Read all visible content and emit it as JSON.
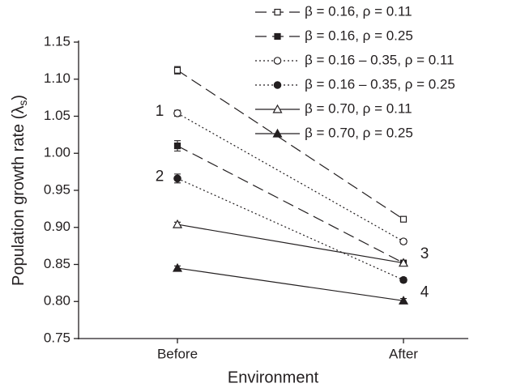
{
  "chart_data": {
    "type": "line",
    "x_label": "Environment",
    "y_label": [
      "Population growth rate (λ",
      "s",
      ")"
    ],
    "categories": [
      "Before",
      "After"
    ],
    "ylim": [
      0.75,
      1.15
    ],
    "yticks": [
      0.75,
      {
        "value": 0.8,
        "label": "0.80"
      },
      0.85,
      {
        "value": 0.9,
        "label": "0.90"
      },
      0.95,
      {
        "value": 1.0,
        "label": "1.00"
      },
      1.05,
      {
        "value": 1.1,
        "label": "1.10"
      },
      1.15
    ],
    "series": [
      {
        "name": "β = 0.16, ρ = 0.11",
        "color": "#231f20",
        "line_style": "dashed",
        "marker": "square",
        "filled": false,
        "values": [
          1.112,
          0.911
        ],
        "errors": [
          0.005,
          0.003
        ]
      },
      {
        "name": "β = 0.16, ρ = 0.25",
        "color": "#231f20",
        "line_style": "dashed",
        "marker": "square",
        "filled": true,
        "values": [
          1.01,
          0.852
        ],
        "errors": [
          0.007,
          0.003
        ]
      },
      {
        "name": "β = 0.16 – 0.35, ρ = 0.11",
        "color": "#231f20",
        "line_style": "dotted",
        "marker": "circle",
        "filled": false,
        "values": [
          1.054,
          0.881
        ],
        "errors": [
          0.004,
          0.003
        ]
      },
      {
        "name": "β = 0.16 – 0.35, ρ = 0.25",
        "color": "#231f20",
        "line_style": "dotted",
        "marker": "circle",
        "filled": true,
        "values": [
          0.966,
          0.829
        ],
        "errors": [
          0.006,
          0.003
        ]
      },
      {
        "name": "β = 0.70, ρ = 0.11",
        "color": "#231f20",
        "line_style": "solid",
        "marker": "triangle",
        "filled": false,
        "values": [
          0.904,
          0.852
        ],
        "errors": [
          0.003,
          0.003
        ]
      },
      {
        "name": "β = 0.70, ρ = 0.25",
        "color": "#231f20",
        "line_style": "solid",
        "marker": "triangle",
        "filled": true,
        "values": [
          0.845,
          0.801
        ],
        "errors": [
          0.003,
          0.003
        ]
      }
    ],
    "annotations": [
      "1",
      "2",
      "3",
      "4"
    ],
    "legend": "upper right"
  }
}
